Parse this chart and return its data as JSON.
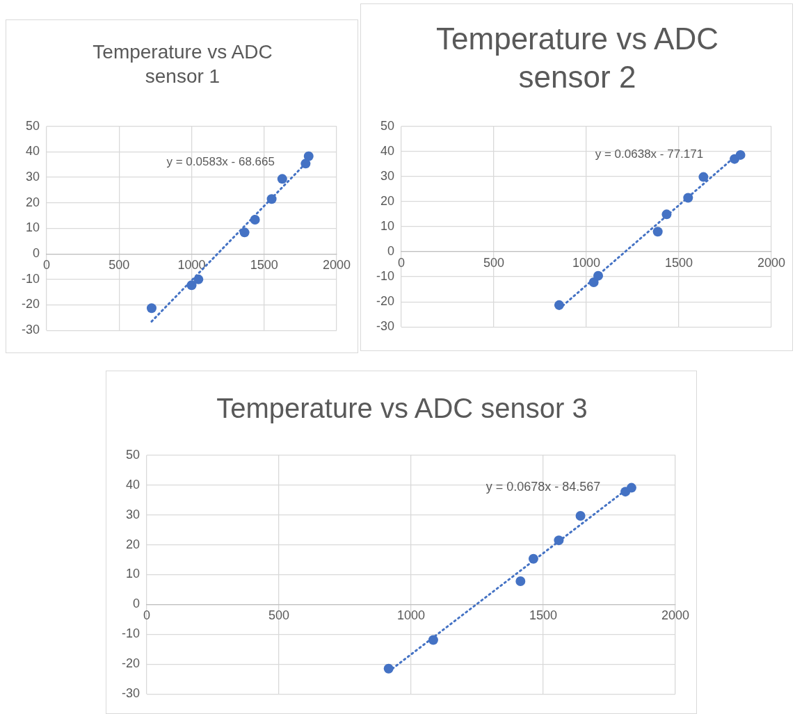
{
  "chart_data": [
    {
      "type": "scatter",
      "title": "Temperature vs ADC sensor 1",
      "xlim": [
        0,
        2000
      ],
      "xticks": [
        0,
        500,
        1000,
        1500,
        2000
      ],
      "ylim": [
        -30,
        50
      ],
      "yticks": [
        -30,
        -20,
        -10,
        0,
        10,
        20,
        30,
        40,
        50
      ],
      "grid": true,
      "marker": "circle",
      "annotations": [
        "y = 0.0583x - 68.665"
      ],
      "series": [
        {
          "type": "scatter",
          "color": "#4472c4",
          "x": [
            724,
            1000,
            1047,
            1365,
            1437,
            1552,
            1625,
            1786,
            1807
          ],
          "values": [
            -21.3,
            -12.3,
            -10,
            8.4,
            13.4,
            21.5,
            29.4,
            35.4,
            38.3
          ]
        },
        {
          "type": "line",
          "color": "#4472c4",
          "line_style": "dotted",
          "marker": "none",
          "x": [
            724,
            1807
          ],
          "values": [
            -26.5,
            36.7
          ]
        }
      ]
    },
    {
      "type": "scatter",
      "title": "Temperature vs ADC sensor 2",
      "xlim": [
        0,
        2000
      ],
      "xticks": [
        0,
        500,
        1000,
        1500,
        2000
      ],
      "ylim": [
        -30,
        50
      ],
      "yticks": [
        -30,
        -20,
        -10,
        0,
        10,
        20,
        30,
        40,
        50
      ],
      "grid": true,
      "marker": "circle",
      "annotations": [
        "y = 0.0638x - 77.171"
      ],
      "series": [
        {
          "type": "scatter",
          "color": "#4472c4",
          "x": [
            853,
            1040,
            1064,
            1386,
            1434,
            1550,
            1633,
            1801,
            1833
          ],
          "values": [
            -21.3,
            -12.2,
            -9.6,
            8,
            14.9,
            21.5,
            29.8,
            37,
            38.6
          ]
        },
        {
          "type": "line",
          "color": "#4472c4",
          "line_style": "dotted",
          "marker": "none",
          "x": [
            853,
            1833
          ],
          "values": [
            -22.8,
            39.8
          ]
        }
      ]
    },
    {
      "type": "scatter",
      "title": "Temperature vs ADC sensor 3",
      "xlim": [
        0,
        2000
      ],
      "xticks": [
        0,
        500,
        1000,
        1500,
        2000
      ],
      "ylim": [
        -30,
        50
      ],
      "yticks": [
        -30,
        -20,
        -10,
        0,
        10,
        20,
        30,
        40,
        50
      ],
      "grid": true,
      "marker": "circle",
      "annotations": [
        "y = 0.0678x - 84.567"
      ],
      "series": [
        {
          "type": "scatter",
          "color": "#4472c4",
          "x": [
            915,
            1084,
            1414,
            1463,
            1559,
            1641,
            1811,
            1834
          ],
          "values": [
            -21.5,
            -11.9,
            7.8,
            15.3,
            21.5,
            29.7,
            37.8,
            39.1
          ]
        },
        {
          "type": "line",
          "color": "#4472c4",
          "line_style": "dotted",
          "marker": "none",
          "x": [
            915,
            1834
          ],
          "values": [
            -22.5,
            39.8
          ]
        }
      ]
    }
  ]
}
